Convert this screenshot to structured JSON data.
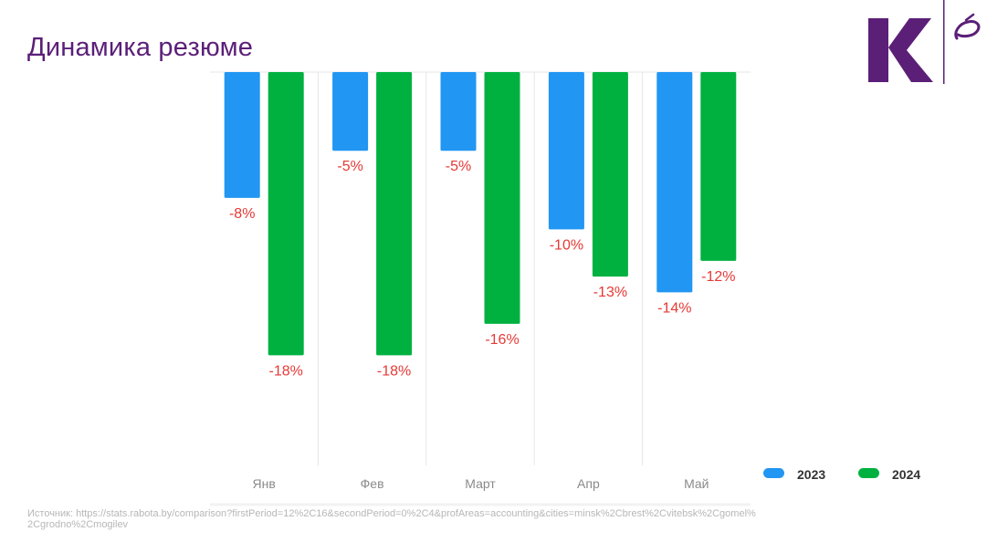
{
  "slide": {
    "title": "Динамика резюме",
    "title_color": "#5b1f78"
  },
  "logo": {
    "letter": "K",
    "color": "#5b1f78",
    "icon": "brand-logo-icon"
  },
  "chart_data": {
    "type": "bar",
    "title": "",
    "xlabel": "",
    "ylabel": "",
    "categories": [
      "Янв",
      "Фев",
      "Март",
      "Апр",
      "Май"
    ],
    "series": [
      {
        "name": "2023",
        "values": [
          -8,
          -5,
          -5,
          -10,
          -14
        ],
        "color": "#2196f3"
      },
      {
        "name": "2024",
        "values": [
          -18,
          -18,
          -16,
          -13,
          -12
        ],
        "color": "#00b140"
      }
    ],
    "ylim": [
      -25,
      0
    ],
    "grid": "vertical",
    "legend_position": "right",
    "data_label_color": "#e53935"
  },
  "source": {
    "text": "Источник: https://stats.rabota.by/comparison?firstPeriod=12%2C16&secondPeriod=0%2C4&profAreas=accounting&cities=minsk%2Cbrest%2Cvitebsk%2Cgomel%2Cgrodno%2Cmogilev"
  }
}
